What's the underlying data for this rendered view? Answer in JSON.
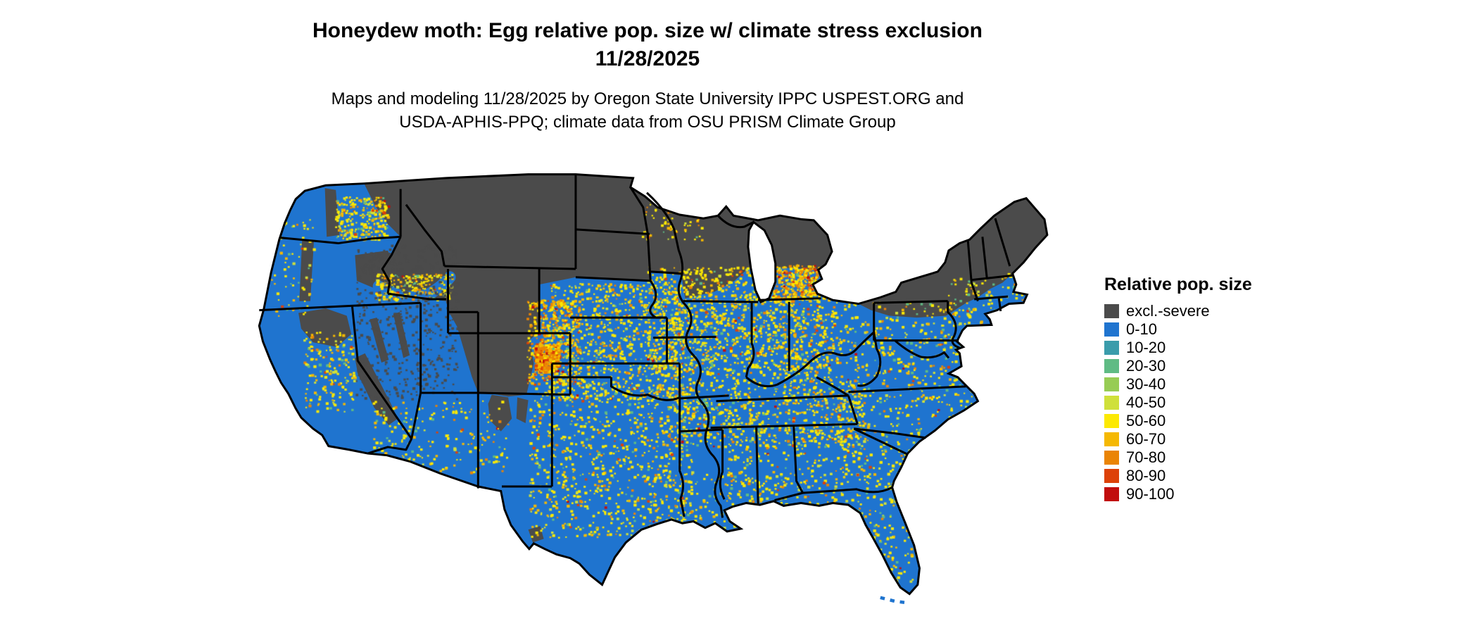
{
  "header": {
    "title_line1": "Honeydew moth: Egg relative pop. size w/ climate stress exclusion",
    "title_line2": "11/28/2025",
    "subtitle_line1": "Maps and modeling 11/28/2025 by Oregon State University IPPC USPEST.ORG and",
    "subtitle_line2": "USDA-APHIS-PPQ; climate data from OSU PRISM Climate Group"
  },
  "legend": {
    "title": "Relative pop. size",
    "items": [
      {
        "label": "excl.-severe",
        "color": "#4b4b4b"
      },
      {
        "label": "0-10",
        "color": "#1f74cf"
      },
      {
        "label": "10-20",
        "color": "#3a9cab"
      },
      {
        "label": "20-30",
        "color": "#5fbb84"
      },
      {
        "label": "30-40",
        "color": "#97cc54"
      },
      {
        "label": "40-50",
        "color": "#cfe03a"
      },
      {
        "label": "50-60",
        "color": "#fce903"
      },
      {
        "label": "60-70",
        "color": "#f5b802"
      },
      {
        "label": "70-80",
        "color": "#ea8404"
      },
      {
        "label": "80-90",
        "color": "#dd4108"
      },
      {
        "label": "90-100",
        "color": "#c10d0d"
      }
    ]
  },
  "map_colors": {
    "base_fill": "#1f74cf",
    "excluded_fill": "#4b4b4b",
    "border": "#000000",
    "water": "#ffffff"
  }
}
